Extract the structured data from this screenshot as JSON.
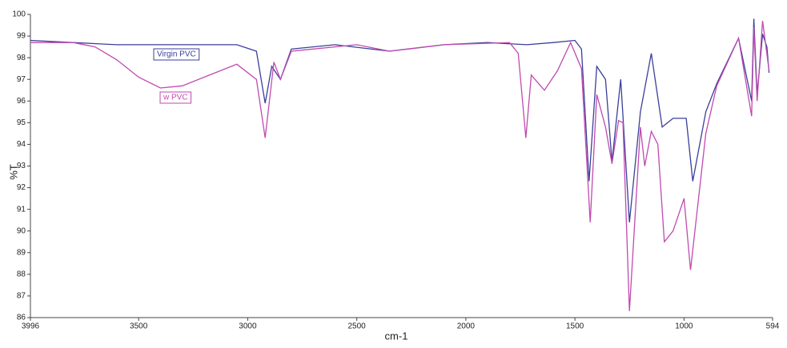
{
  "chart_data": {
    "type": "line",
    "x_label": "cm-1",
    "y_label": "%T",
    "xlim": [
      3996,
      594
    ],
    "ylim": [
      86,
      100
    ],
    "xticks": [
      3996,
      3500,
      3000,
      2500,
      2000,
      1500,
      1000,
      594
    ],
    "yticks": [
      86,
      87,
      88,
      89,
      90,
      91,
      92,
      93,
      94,
      95,
      96,
      97,
      98,
      99,
      100
    ],
    "series": [
      {
        "name": "Virgin PVC",
        "color": "#3a3f9a",
        "x": [
          3996,
          3800,
          3600,
          3400,
          3200,
          3050,
          2960,
          2920,
          2890,
          2850,
          2800,
          2600,
          2350,
          2100,
          1900,
          1720,
          1600,
          1500,
          1470,
          1435,
          1400,
          1360,
          1330,
          1290,
          1250,
          1200,
          1150,
          1100,
          1050,
          990,
          960,
          900,
          850,
          750,
          690,
          680,
          665,
          640,
          620,
          610
        ],
        "values": [
          98.8,
          98.7,
          98.6,
          98.6,
          98.6,
          98.6,
          98.3,
          95.9,
          97.6,
          97.0,
          98.4,
          98.6,
          98.3,
          98.6,
          98.7,
          98.6,
          98.7,
          98.8,
          98.4,
          92.3,
          97.6,
          97.0,
          93.2,
          97.0,
          90.4,
          95.5,
          98.2,
          94.8,
          95.2,
          95.2,
          92.3,
          95.5,
          96.8,
          98.9,
          96.0,
          99.8,
          96.3,
          99.1,
          98.5,
          97.3
        ]
      },
      {
        "name": "w PVC",
        "color": "#c04ab0",
        "x": [
          3996,
          3800,
          3700,
          3600,
          3500,
          3400,
          3300,
          3200,
          3050,
          2960,
          2920,
          2880,
          2850,
          2800,
          2500,
          2350,
          2100,
          1800,
          1760,
          1725,
          1700,
          1640,
          1580,
          1520,
          1470,
          1430,
          1400,
          1360,
          1330,
          1300,
          1280,
          1250,
          1200,
          1180,
          1150,
          1120,
          1090,
          1050,
          1000,
          970,
          900,
          850,
          750,
          690,
          680,
          665,
          640,
          610
        ],
        "values": [
          98.7,
          98.7,
          98.5,
          97.9,
          97.1,
          96.6,
          96.7,
          97.1,
          97.7,
          97.0,
          94.3,
          97.8,
          97.0,
          98.3,
          98.6,
          98.3,
          98.6,
          98.7,
          98.2,
          94.3,
          97.2,
          96.5,
          97.4,
          98.7,
          97.5,
          90.4,
          96.3,
          94.8,
          93.1,
          95.1,
          95.0,
          86.3,
          94.8,
          93.0,
          94.6,
          94.0,
          89.5,
          90.0,
          91.5,
          88.2,
          94.5,
          96.7,
          98.9,
          95.3,
          99.4,
          96.0,
          99.7,
          97.4
        ]
      }
    ]
  }
}
